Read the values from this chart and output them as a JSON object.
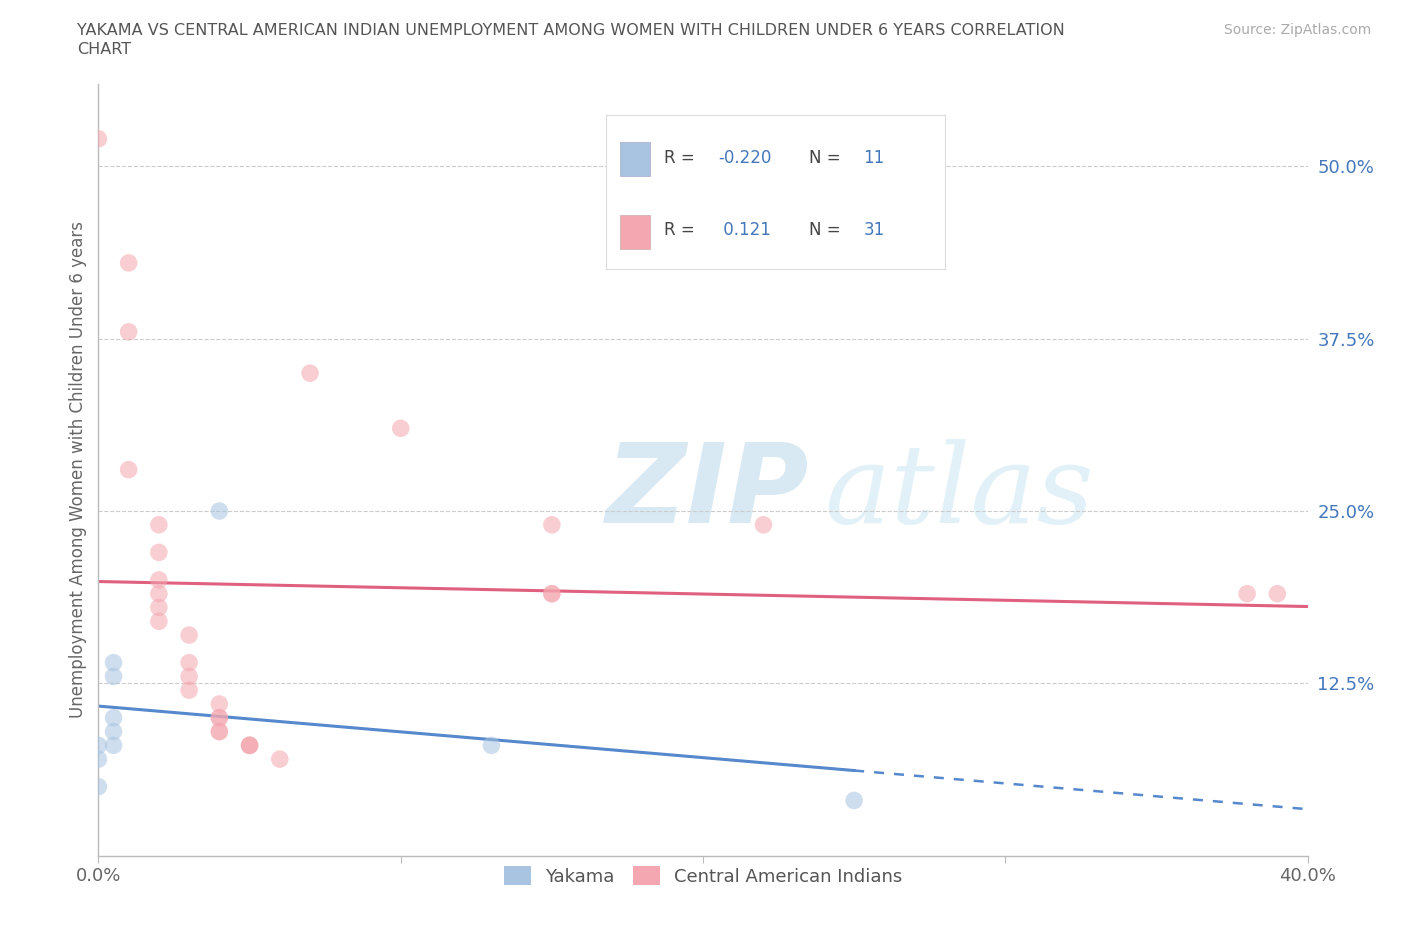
{
  "title_line1": "YAKAMA VS CENTRAL AMERICAN INDIAN UNEMPLOYMENT AMONG WOMEN WITH CHILDREN UNDER 6 YEARS CORRELATION",
  "title_line2": "CHART",
  "source_text": "Source: ZipAtlas.com",
  "ylabel": "Unemployment Among Women with Children Under 6 years",
  "xlim": [
    0.0,
    0.4
  ],
  "ylim": [
    0.0,
    0.56
  ],
  "yticks": [
    0.0,
    0.125,
    0.25,
    0.375,
    0.5
  ],
  "ytick_labels": [
    "",
    "12.5%",
    "25.0%",
    "37.5%",
    "50.0%"
  ],
  "xtick_positions": [
    0.0,
    0.1,
    0.2,
    0.3,
    0.4
  ],
  "xtick_labels": [
    "0.0%",
    "",
    "",
    "",
    "40.0%"
  ],
  "yakama_color": "#a8c4e0",
  "central_american_color": "#f4a7b0",
  "yakama_scatter": [
    [
      0.0,
      0.05
    ],
    [
      0.0,
      0.07
    ],
    [
      0.0,
      0.08
    ],
    [
      0.005,
      0.08
    ],
    [
      0.005,
      0.09
    ],
    [
      0.005,
      0.1
    ],
    [
      0.005,
      0.13
    ],
    [
      0.005,
      0.14
    ],
    [
      0.04,
      0.25
    ],
    [
      0.13,
      0.08
    ],
    [
      0.25,
      0.04
    ]
  ],
  "central_american_scatter": [
    [
      0.0,
      0.52
    ],
    [
      0.01,
      0.43
    ],
    [
      0.01,
      0.38
    ],
    [
      0.01,
      0.28
    ],
    [
      0.02,
      0.24
    ],
    [
      0.02,
      0.22
    ],
    [
      0.02,
      0.2
    ],
    [
      0.02,
      0.19
    ],
    [
      0.02,
      0.18
    ],
    [
      0.02,
      0.17
    ],
    [
      0.03,
      0.16
    ],
    [
      0.03,
      0.14
    ],
    [
      0.03,
      0.13
    ],
    [
      0.03,
      0.12
    ],
    [
      0.04,
      0.11
    ],
    [
      0.04,
      0.1
    ],
    [
      0.04,
      0.1
    ],
    [
      0.04,
      0.09
    ],
    [
      0.04,
      0.09
    ],
    [
      0.05,
      0.08
    ],
    [
      0.05,
      0.08
    ],
    [
      0.05,
      0.08
    ],
    [
      0.06,
      0.07
    ],
    [
      0.07,
      0.35
    ],
    [
      0.1,
      0.31
    ],
    [
      0.15,
      0.24
    ],
    [
      0.15,
      0.19
    ],
    [
      0.15,
      0.19
    ],
    [
      0.22,
      0.24
    ],
    [
      0.38,
      0.19
    ],
    [
      0.39,
      0.19
    ]
  ],
  "yakama_R": -0.22,
  "yakama_N": 11,
  "central_american_R": 0.121,
  "central_american_N": 31,
  "legend_yakama_label": "Yakama",
  "legend_central_label": "Central American Indians",
  "watermark_zip": "ZIP",
  "watermark_atlas": "atlas",
  "background_color": "#ffffff",
  "grid_color": "#cccccc",
  "yakama_line_color": "#5588cc",
  "central_american_line_color": "#e06080",
  "scatter_size": 160,
  "scatter_alpha": 0.55,
  "title_color": "#555555",
  "tick_color": "#4477bb"
}
